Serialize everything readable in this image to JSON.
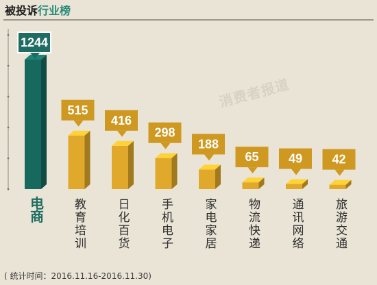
{
  "header": {
    "title_part1": "被投诉",
    "title_part2": "行业榜"
  },
  "watermark": "消费者报道",
  "footnote": "( 统计时间：2016.11.16-2016.11.30)",
  "colors": {
    "highlight_bar": "#17695e",
    "highlight_label": "#1f6d62",
    "bar": "#e0a92b",
    "callout_highlight": "#1f6d62",
    "callout": "#cf9820"
  },
  "chart_data": {
    "type": "bar",
    "title": "被投诉行业榜",
    "categories": [
      "电商",
      "教育培训",
      "日化百货",
      "手机电子",
      "家电家居",
      "物流快递",
      "通讯网络",
      "旅游交通"
    ],
    "values": [
      1244,
      515,
      416,
      298,
      188,
      65,
      49,
      42
    ],
    "highlight_index": 0,
    "ylim": [
      0,
      1244
    ],
    "grid": false
  }
}
